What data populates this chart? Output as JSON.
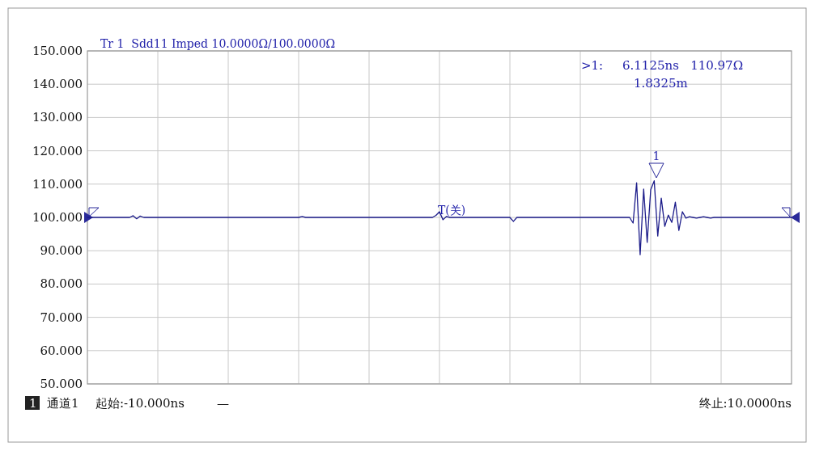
{
  "chart_data": {
    "type": "line",
    "title": "Tr 1  Sdd11 Imped 10.0000Ω/100.0000Ω",
    "categories": [
      null,
      null,
      null,
      null,
      null,
      null,
      null,
      null,
      null,
      null,
      null,
      null,
      null,
      null,
      null,
      null,
      null,
      null,
      null,
      null,
      null,
      null,
      null,
      null,
      null,
      null,
      null,
      null,
      null,
      null,
      null,
      null,
      null,
      null,
      null,
      null,
      null,
      null,
      null,
      null,
      null,
      null,
      null,
      null,
      null,
      null,
      null,
      null,
      null,
      null,
      null,
      null,
      null,
      null,
      null,
      null,
      null,
      null,
      null,
      null,
      null,
      null,
      null,
      null,
      null,
      null,
      null,
      null,
      null,
      null,
      null,
      null,
      null,
      null,
      null,
      null,
      null,
      null,
      null,
      null,
      null,
      null,
      null,
      null,
      null,
      null,
      null,
      null,
      null,
      null,
      null,
      null,
      null,
      null,
      null,
      null,
      null,
      null,
      null,
      null,
      null,
      null,
      null,
      null,
      null,
      null,
      null,
      null,
      null,
      null,
      null,
      null,
      null,
      null,
      null,
      null,
      null,
      null,
      null,
      null,
      null,
      null,
      null,
      null,
      null,
      null,
      null,
      null,
      null,
      null,
      null,
      null,
      null,
      null,
      null,
      null,
      null,
      null,
      null,
      null,
      null,
      null,
      null,
      null,
      null,
      null,
      null,
      null,
      null,
      null,
      null,
      null,
      null,
      null,
      null,
      null,
      null,
      null,
      null,
      null,
      null,
      null,
      null,
      null,
      null,
      null,
      null,
      null,
      null,
      null,
      null,
      null,
      null,
      null,
      null,
      null,
      null,
      null,
      null,
      null,
      null,
      null,
      null,
      null,
      null,
      null,
      null,
      null,
      null,
      null,
      null,
      null,
      null,
      null,
      null,
      null,
      null,
      null,
      null,
      null,
      null
    ],
    "series": [
      {
        "color": "#1c1c8a",
        "values": [
          100,
          100,
          100,
          100,
          100,
          100,
          100,
          100,
          100,
          100,
          100,
          100,
          100,
          100.5,
          99.6,
          100.4,
          100,
          100,
          100,
          100,
          100,
          100,
          100,
          100,
          100,
          100,
          100,
          100,
          100,
          100,
          100,
          100,
          100,
          100,
          100,
          100,
          100,
          100,
          100,
          100,
          100,
          100,
          100,
          100,
          100,
          100,
          100,
          100,
          100,
          100,
          100,
          100,
          100,
          100,
          100,
          100,
          100,
          100,
          100,
          100,
          100,
          100.3,
          100,
          100,
          100,
          100,
          100,
          100,
          100,
          100,
          100,
          100,
          100,
          100,
          100,
          100,
          100,
          100,
          100,
          100,
          100,
          100,
          100,
          100,
          100,
          100,
          100,
          100,
          100,
          100,
          100,
          100,
          100,
          100,
          100,
          100,
          100,
          100,
          100,
          100.6,
          101.7,
          99.3,
          100.3,
          100,
          100,
          100,
          100,
          100,
          100,
          100,
          100,
          100,
          100,
          100,
          100,
          100,
          100,
          100,
          100,
          100,
          100,
          98.8,
          100,
          100,
          100,
          100,
          100,
          100,
          100,
          100,
          100,
          100,
          100,
          100,
          100,
          100,
          100,
          100,
          100,
          100,
          100,
          100,
          100,
          100,
          100,
          100,
          100,
          100,
          100,
          100,
          100,
          100,
          100,
          100,
          100,
          98.3,
          110.4,
          88.8,
          108.5,
          92.5,
          108.3,
          111.0,
          94.4,
          105.8,
          97.3,
          100.7,
          98.5,
          104.6,
          96.1,
          101.7,
          99.8,
          100.2,
          100,
          99.8,
          100,
          100.2,
          100,
          99.8,
          100,
          100,
          100,
          100,
          100,
          100,
          100,
          100,
          100,
          100,
          100,
          100,
          100,
          100,
          100,
          100,
          100,
          100,
          100,
          100,
          100,
          100,
          100
        ]
      }
    ],
    "ylim": [
      50,
      150
    ],
    "yticks": [
      {
        "value": 50,
        "label": "50.000"
      },
      {
        "value": 60,
        "label": "60.000"
      },
      {
        "value": 70,
        "label": "70.000"
      },
      {
        "value": 80,
        "label": "80.000"
      },
      {
        "value": 90,
        "label": "90.000"
      },
      {
        "value": 100,
        "label": "100.000"
      },
      {
        "value": 110,
        "label": "110.000"
      },
      {
        "value": 120,
        "label": "120.000"
      },
      {
        "value": 130,
        "label": "130.000"
      },
      {
        "value": 140,
        "label": "140.000"
      },
      {
        "value": 150,
        "label": "150.000"
      }
    ],
    "tick_labels": "y",
    "grid": true,
    "marker": "none",
    "line_style": "solid",
    "annotations": [
      ">1:     6.1125ns   110.97Ω",
      "1.8325m",
      "T(关)",
      "1",
      "1",
      "通道1",
      "起始:-10.000ns",
      "—",
      "终止:10.0000ns"
    ]
  }
}
